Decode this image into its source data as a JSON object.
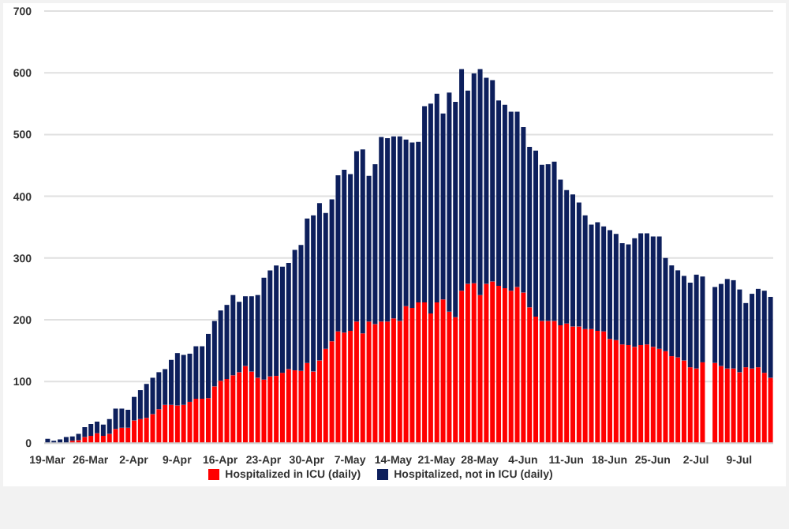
{
  "chart_data": {
    "type": "bar",
    "stacked": true,
    "grid": "y",
    "legend": "bottom",
    "categories": [
      "19-Mar",
      null,
      null,
      null,
      null,
      null,
      null,
      "26-Mar",
      null,
      null,
      null,
      null,
      null,
      null,
      "2-Apr",
      null,
      null,
      null,
      null,
      null,
      null,
      "9-Apr",
      null,
      null,
      null,
      null,
      null,
      null,
      "16-Apr",
      null,
      null,
      null,
      null,
      null,
      null,
      "23-Apr",
      null,
      null,
      null,
      null,
      null,
      null,
      "30-Apr",
      null,
      null,
      null,
      null,
      null,
      null,
      "7-May",
      null,
      null,
      null,
      null,
      null,
      null,
      "14-May",
      null,
      null,
      null,
      null,
      null,
      null,
      "21-May",
      null,
      null,
      null,
      null,
      null,
      null,
      "28-May",
      null,
      null,
      null,
      null,
      null,
      null,
      "4-Jun",
      null,
      null,
      null,
      null,
      null,
      null,
      "11-Jun",
      null,
      null,
      null,
      null,
      null,
      null,
      "18-Jun",
      null,
      null,
      null,
      null,
      null,
      null,
      "25-Jun",
      null,
      null,
      null,
      null,
      null,
      null,
      "2-Jul",
      null,
      null,
      null,
      null,
      null,
      null,
      "9-Jul",
      null,
      null,
      null,
      null,
      null
    ],
    "ylim": [
      0,
      700
    ],
    "yticks": [
      0,
      100,
      200,
      300,
      400,
      500,
      600,
      700
    ],
    "series": [
      {
        "name": "Hospitalized in ICU (daily)",
        "color": "#ff0000",
        "values": [
          null,
          null,
          null,
          null,
          4,
          5,
          10,
          12,
          16,
          12,
          15,
          23,
          25,
          25,
          37,
          39,
          41,
          47,
          55,
          62,
          62,
          61,
          62,
          67,
          72,
          72,
          73,
          92,
          101,
          104,
          110,
          115,
          125,
          116,
          106,
          103,
          108,
          109,
          114,
          120,
          118,
          117,
          130,
          116,
          134,
          153,
          165,
          181,
          179,
          182,
          197,
          178,
          197,
          193,
          197,
          197,
          202,
          198,
          222,
          219,
          228,
          228,
          210,
          228,
          233,
          213,
          204,
          247,
          258,
          259,
          240,
          258,
          262,
          255,
          251,
          247,
          253,
          244,
          220,
          205,
          198,
          198,
          198,
          191,
          194,
          189,
          189,
          185,
          185,
          182,
          181,
          169,
          167,
          160,
          159,
          156,
          159,
          160,
          156,
          153,
          149,
          141,
          139,
          134,
          123,
          121,
          131,
          null,
          130,
          125,
          121,
          121,
          115,
          123,
          121,
          123,
          114,
          106
        ]
      },
      {
        "name": "Hospitalized, not in ICU (daily)",
        "color": "#0d1f5c",
        "values": [
          7,
          4,
          6,
          10,
          7,
          10,
          16,
          19,
          19,
          18,
          24,
          33,
          31,
          29,
          38,
          47,
          55,
          59,
          60,
          58,
          73,
          85,
          81,
          78,
          85,
          85,
          104,
          106,
          114,
          120,
          130,
          114,
          113,
          122,
          134,
          165,
          172,
          179,
          172,
          172,
          195,
          204,
          234,
          253,
          255,
          220,
          230,
          253,
          264,
          254,
          276,
          298,
          236,
          259,
          299,
          297,
          295,
          299,
          270,
          268,
          260,
          318,
          340,
          338,
          301,
          355,
          349,
          359,
          313,
          340,
          366,
          334,
          326,
          300,
          297,
          290,
          284,
          268,
          260,
          269,
          253,
          254,
          258,
          236,
          216,
          214,
          201,
          184,
          169,
          176,
          170,
          176,
          172,
          164,
          163,
          176,
          181,
          180,
          179,
          182,
          151,
          147,
          141,
          137,
          137,
          152,
          139,
          null,
          123,
          133,
          145,
          143,
          134,
          104,
          121,
          127,
          133,
          131
        ]
      }
    ]
  }
}
